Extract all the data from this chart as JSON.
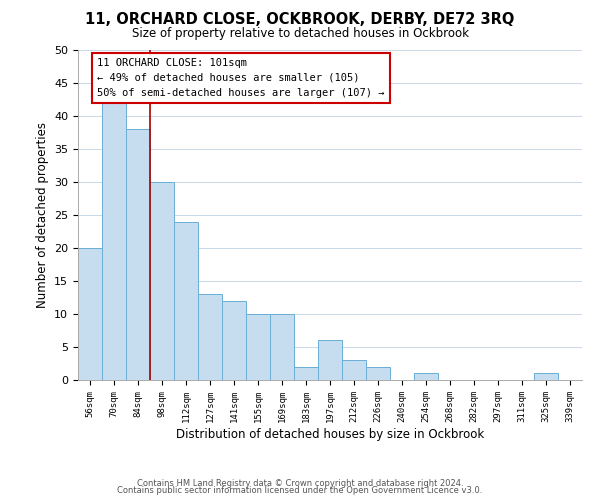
{
  "title": "11, ORCHARD CLOSE, OCKBROOK, DERBY, DE72 3RQ",
  "subtitle": "Size of property relative to detached houses in Ockbrook",
  "xlabel": "Distribution of detached houses by size in Ockbrook",
  "ylabel": "Number of detached properties",
  "bar_labels": [
    "56sqm",
    "70sqm",
    "84sqm",
    "98sqm",
    "112sqm",
    "127sqm",
    "141sqm",
    "155sqm",
    "169sqm",
    "183sqm",
    "197sqm",
    "212sqm",
    "226sqm",
    "240sqm",
    "254sqm",
    "268sqm",
    "282sqm",
    "297sqm",
    "311sqm",
    "325sqm",
    "339sqm"
  ],
  "bar_values": [
    20,
    42,
    38,
    30,
    24,
    13,
    12,
    10,
    10,
    2,
    6,
    3,
    2,
    0,
    1,
    0,
    0,
    0,
    0,
    1,
    0
  ],
  "bar_color": "#c6ddf0",
  "bar_edge_color": "#6aafd6",
  "highlight_bar_idx": 3,
  "highlight_line_color": "#aa0000",
  "ylim": [
    0,
    50
  ],
  "yticks": [
    0,
    5,
    10,
    15,
    20,
    25,
    30,
    35,
    40,
    45,
    50
  ],
  "annotation_title": "11 ORCHARD CLOSE: 101sqm",
  "annotation_line1": "← 49% of detached houses are smaller (105)",
  "annotation_line2": "50% of semi-detached houses are larger (107) →",
  "annotation_box_color": "#ffffff",
  "annotation_box_edge": "#cc0000",
  "footer1": "Contains HM Land Registry data © Crown copyright and database right 2024.",
  "footer2": "Contains public sector information licensed under the Open Government Licence v3.0.",
  "background_color": "#ffffff",
  "grid_color": "#c8d8e8"
}
